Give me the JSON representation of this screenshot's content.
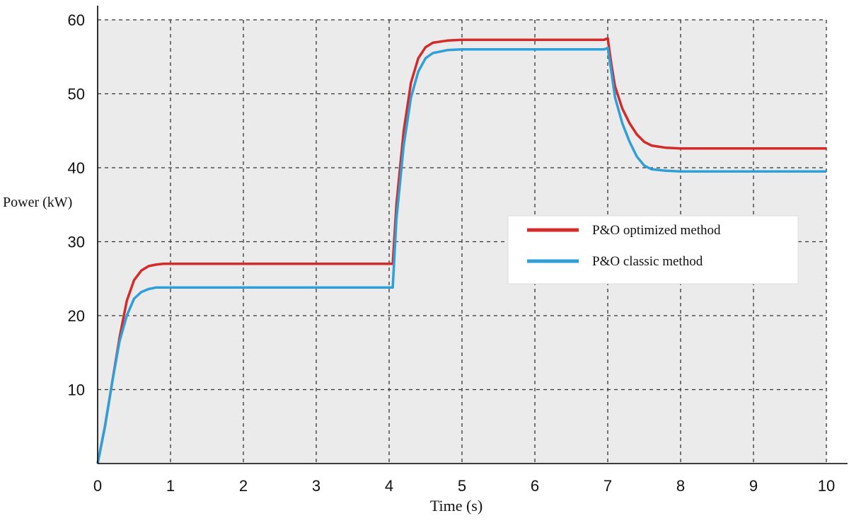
{
  "chart_data": {
    "type": "line",
    "title": "",
    "xlabel": "Time (s)",
    "ylabel": "Power (kW)",
    "xlim": [
      0,
      10
    ],
    "ylim": [
      0,
      60
    ],
    "x_ticks": [
      0,
      1,
      2,
      3,
      4,
      5,
      6,
      7,
      8,
      9,
      10
    ],
    "y_ticks": [
      10,
      20,
      30,
      40,
      50,
      60
    ],
    "grid": true,
    "grid_style": "dashed",
    "plot_background": "#ebebeb",
    "legend_position": "right-middle",
    "series": [
      {
        "name": "P&O optimized method",
        "color": "#d42a2a",
        "x": [
          0,
          0.1,
          0.2,
          0.3,
          0.4,
          0.5,
          0.6,
          0.7,
          0.8,
          0.9,
          1.0,
          2.0,
          3.0,
          3.9,
          4.05,
          4.1,
          4.2,
          4.3,
          4.4,
          4.5,
          4.6,
          4.8,
          5.0,
          6.0,
          6.95,
          7.0,
          7.05,
          7.1,
          7.2,
          7.3,
          7.4,
          7.5,
          7.6,
          7.8,
          8.0,
          9.0,
          10.0
        ],
        "y": [
          0,
          5,
          11,
          17,
          22,
          24.8,
          26.1,
          26.7,
          26.9,
          27,
          27,
          27,
          27,
          27,
          27,
          35,
          45,
          51.5,
          54.8,
          56.3,
          56.9,
          57.2,
          57.3,
          57.3,
          57.3,
          57.5,
          54,
          51,
          48,
          46,
          44.5,
          43.5,
          43,
          42.7,
          42.6,
          42.6,
          42.6
        ]
      },
      {
        "name": "P&O classic method",
        "color": "#2f9fd8",
        "x": [
          0,
          0.1,
          0.2,
          0.3,
          0.4,
          0.5,
          0.6,
          0.7,
          0.8,
          0.9,
          1.0,
          2.0,
          3.0,
          3.9,
          4.05,
          4.1,
          4.2,
          4.3,
          4.4,
          4.5,
          4.6,
          4.8,
          5.0,
          6.0,
          6.95,
          7.0,
          7.05,
          7.1,
          7.2,
          7.3,
          7.4,
          7.5,
          7.6,
          7.8,
          8.0,
          9.0,
          10.0
        ],
        "y": [
          0,
          5,
          11,
          16.5,
          20,
          22.3,
          23.2,
          23.6,
          23.8,
          23.8,
          23.8,
          23.8,
          23.8,
          23.8,
          23.8,
          33,
          43,
          49.5,
          53,
          54.8,
          55.5,
          55.9,
          56,
          56,
          56,
          56.2,
          53,
          49.5,
          46,
          43.5,
          41.5,
          40.3,
          39.8,
          39.6,
          39.5,
          39.5,
          39.5
        ]
      }
    ]
  }
}
